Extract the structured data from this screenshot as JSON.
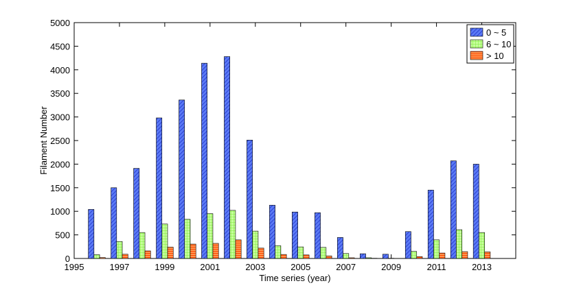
{
  "chart_data": {
    "type": "bar",
    "xlabel": "Time series (year)",
    "ylabel": "Filament Number",
    "xlim": [
      1995,
      2014.5
    ],
    "ylim": [
      0,
      5000
    ],
    "xticks": [
      1995,
      1997,
      1999,
      2001,
      2003,
      2005,
      2007,
      2009,
      2011,
      2013
    ],
    "yticks": [
      0,
      500,
      1000,
      1500,
      2000,
      2500,
      3000,
      3500,
      4000,
      4500,
      5000
    ],
    "legend_position": "top-right",
    "categories": [
      1996,
      1997,
      1998,
      1999,
      2000,
      2001,
      2002,
      2003,
      2004,
      2005,
      2006,
      2007,
      2008,
      2009,
      2010,
      2011,
      2012,
      2013
    ],
    "series": [
      {
        "name": "0 ~ 5",
        "color": "#3355ee",
        "pattern": "diagonal-hatch",
        "values": [
          1040,
          1500,
          1910,
          2980,
          3360,
          4140,
          4280,
          2510,
          1130,
          985,
          970,
          445,
          100,
          90,
          570,
          1450,
          2070,
          2000
        ]
      },
      {
        "name": "6 ~ 10",
        "color": "#99ff66",
        "pattern": "grid-hatch",
        "values": [
          80,
          360,
          550,
          730,
          830,
          950,
          1020,
          580,
          270,
          245,
          235,
          105,
          15,
          5,
          150,
          395,
          610,
          550
        ]
      },
      {
        "name": "> 10",
        "color": "#ff6622",
        "pattern": "horizontal-hatch",
        "values": [
          20,
          90,
          160,
          240,
          305,
          320,
          395,
          220,
          85,
          75,
          55,
          15,
          5,
          2,
          40,
          115,
          145,
          140
        ]
      }
    ]
  }
}
